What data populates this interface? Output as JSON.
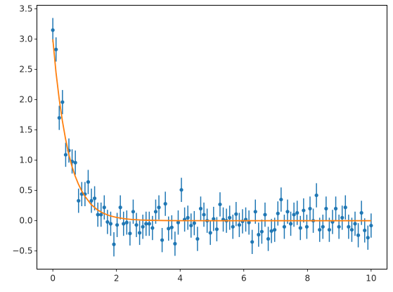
{
  "chart_data": {
    "type": "scatter",
    "title": "",
    "xlabel": "",
    "ylabel": "",
    "xlim": [
      -0.5,
      10.5
    ],
    "ylim": [
      -0.8,
      3.56
    ],
    "xticks": [
      0,
      2,
      4,
      6,
      8,
      10
    ],
    "xtick_labels": [
      "0",
      "2",
      "4",
      "6",
      "8",
      "10"
    ],
    "yticks": [
      -0.5,
      0.0,
      0.5,
      1.0,
      1.5,
      2.0,
      2.5,
      3.0,
      3.5
    ],
    "ytick_labels": [
      "−0.5",
      "0.0",
      "0.5",
      "1.0",
      "1.5",
      "2.0",
      "2.5",
      "3.0",
      "3.5"
    ],
    "grid": false,
    "legend": "none",
    "series": [
      {
        "kind": "errorbar",
        "color": "#1f77b4",
        "yerr": 0.2,
        "x": [
          0.0,
          0.101,
          0.202,
          0.303,
          0.404,
          0.505,
          0.606,
          0.707,
          0.808,
          0.909,
          1.01,
          1.111,
          1.212,
          1.313,
          1.414,
          1.515,
          1.616,
          1.717,
          1.818,
          1.919,
          2.02,
          2.121,
          2.222,
          2.323,
          2.424,
          2.525,
          2.626,
          2.727,
          2.828,
          2.929,
          3.03,
          3.131,
          3.232,
          3.333,
          3.434,
          3.535,
          3.636,
          3.737,
          3.838,
          3.939,
          4.04,
          4.141,
          4.242,
          4.343,
          4.444,
          4.545,
          4.646,
          4.747,
          4.848,
          4.949,
          5.051,
          5.152,
          5.253,
          5.354,
          5.455,
          5.556,
          5.657,
          5.758,
          5.859,
          5.96,
          6.061,
          6.162,
          6.263,
          6.364,
          6.465,
          6.566,
          6.667,
          6.768,
          6.869,
          6.97,
          7.071,
          7.172,
          7.273,
          7.374,
          7.475,
          7.576,
          7.677,
          7.778,
          7.879,
          7.98,
          8.081,
          8.182,
          8.283,
          8.384,
          8.485,
          8.586,
          8.687,
          8.788,
          8.889,
          8.99,
          9.091,
          9.192,
          9.293,
          9.394,
          9.495,
          9.596,
          9.697,
          9.798,
          9.899,
          10.0
        ],
        "y": [
          3.15,
          2.83,
          1.7,
          1.96,
          1.09,
          1.16,
          0.98,
          0.96,
          0.33,
          0.44,
          0.44,
          0.64,
          0.33,
          0.37,
          0.1,
          0.1,
          0.22,
          -0.02,
          -0.05,
          -0.39,
          -0.07,
          0.22,
          -0.05,
          -0.03,
          -0.21,
          0.15,
          -0.07,
          -0.2,
          -0.1,
          -0.05,
          -0.05,
          -0.12,
          0.15,
          0.22,
          -0.32,
          0.28,
          -0.13,
          -0.11,
          -0.38,
          -0.03,
          0.51,
          0.02,
          0.05,
          -0.08,
          -0.04,
          -0.3,
          0.2,
          0.1,
          0.0,
          -0.2,
          0.03,
          -0.14,
          0.27,
          0.02,
          0.0,
          0.05,
          -0.1,
          0.11,
          -0.07,
          -0.01,
          0.02,
          -0.03,
          -0.35,
          0.15,
          -0.23,
          -0.18,
          0.1,
          -0.3,
          -0.17,
          -0.15,
          0.12,
          0.35,
          -0.1,
          0.15,
          -0.05,
          0.1,
          0.13,
          -0.12,
          0.17,
          -0.1,
          0.2,
          0.0,
          0.42,
          -0.15,
          -0.1,
          0.2,
          -0.15,
          -0.02,
          0.2,
          -0.1,
          0.05,
          0.22,
          -0.1,
          -0.15,
          -0.05,
          -0.24,
          0.13,
          -0.16,
          -0.28,
          -0.08
        ]
      },
      {
        "kind": "line",
        "color": "#ff7f0e",
        "x": [
          0.0,
          0.1,
          0.2,
          0.3,
          0.4,
          0.5,
          0.6,
          0.7,
          0.8,
          0.9,
          1.0,
          1.2,
          1.4,
          1.6,
          1.8,
          2.0,
          2.25,
          2.5,
          2.75,
          3.0,
          3.5,
          4.0,
          4.5,
          5.0,
          6.0,
          7.0,
          8.0,
          9.0,
          10.0
        ],
        "y": [
          3.0,
          2.45,
          2.01,
          1.65,
          1.35,
          1.1,
          0.9,
          0.74,
          0.61,
          0.5,
          0.41,
          0.27,
          0.18,
          0.12,
          0.08,
          0.055,
          0.033,
          0.02,
          0.012,
          0.0074,
          0.0027,
          0.001,
          0.0004,
          0.0001,
          0.0,
          0.0,
          0.0,
          0.0,
          0.0
        ]
      }
    ]
  }
}
